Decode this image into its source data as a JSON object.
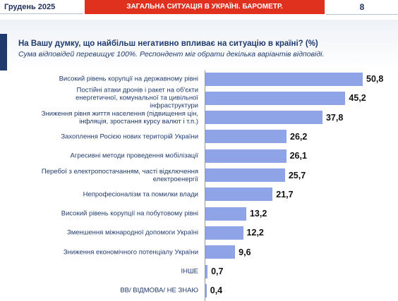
{
  "header": {
    "date": "Грудень 2025",
    "section": "ЗАГАЛЬНА СИТУАЦІЯ В УКРАЇНІ. БАРОМЕТР.",
    "page": "8"
  },
  "chart_data": {
    "type": "bar",
    "orientation": "horizontal",
    "title": "На Вашу думку, що найбільш негативно впливає на ситуацію в країні? (%)",
    "subtitle": "Сума відповідей перевищує 100%. Респондент міг обрати декілька варіантів відповіді.",
    "color": "#8ea4e6",
    "categories": [
      "Високий рівень корупції на державному рівні",
      "Постійні атаки дронів і ракет на об'єкти енергетичної, комунальної та цивільної інфраструктури",
      "Зниження рівня життя населення (підвищення цін, інфляція, зростання курсу валют і т.п.)",
      "Захоплення Росією нових територій України",
      "Агресивні методи проведення мобілізації",
      "Перебої з електропостачанням, часті відключення електроенергії",
      "Непрофесіоналізм та помилки влади",
      "Високий рівень корупції на побутовому рівні",
      "Зменшення міжнародної допомоги Україні",
      "Зниження економічного потенціалу України",
      "ІНШЕ",
      "ВВ/ ВІДМОВА/ НЕ ЗНАЮ"
    ],
    "values": [
      50.8,
      45.2,
      37.8,
      26.2,
      26.1,
      25.7,
      21.7,
      13.2,
      12.2,
      9.6,
      0.7,
      0.4
    ],
    "value_labels": [
      "50,8",
      "45,2",
      "37,8",
      "26,2",
      "26,1",
      "25,7",
      "21,7",
      "13,2",
      "12,2",
      "9,6",
      "0,7",
      "0,4"
    ]
  }
}
